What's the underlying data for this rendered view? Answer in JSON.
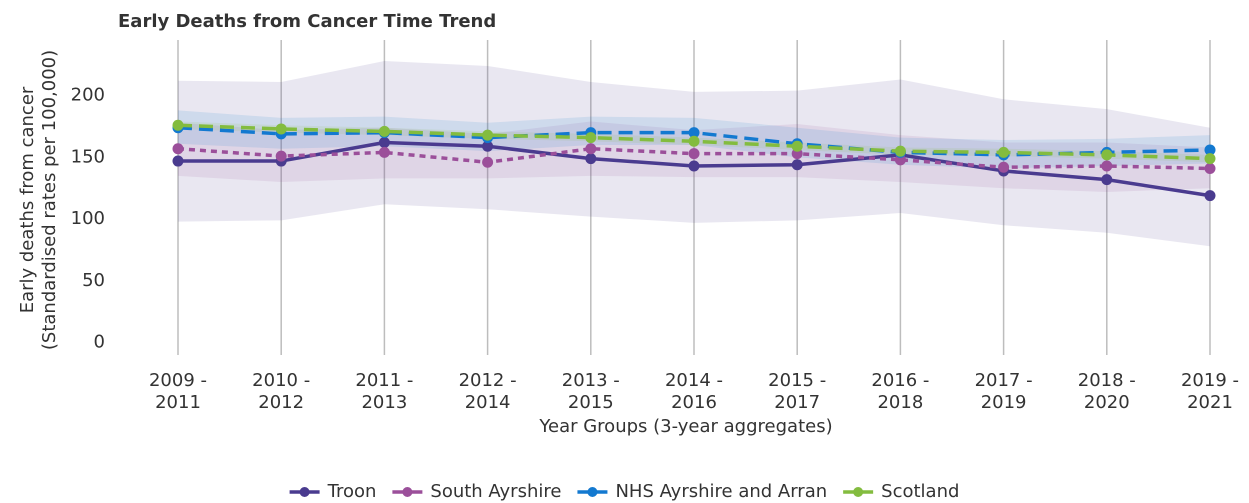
{
  "chart_data": {
    "type": "line",
    "title": "Early Deaths from Cancer Time Trend",
    "y_label": [
      "Early deaths from cancer",
      "(Standardised rates per 100,000)"
    ],
    "x_label": "Year Groups (3-year aggregates)",
    "categories": [
      "2009 - 2011",
      "2010 - 2012",
      "2011 - 2013",
      "2012 - 2014",
      "2013 - 2015",
      "2014 - 2016",
      "2015 - 2017",
      "2016 - 2018",
      "2017 - 2019",
      "2018 - 2020",
      "2019 - 2021"
    ],
    "ylim": [
      -10,
      245
    ],
    "yticks": [
      0,
      50,
      100,
      150,
      200
    ],
    "grid": "x",
    "legend": "bottom",
    "series": [
      {
        "name": "Troon",
        "color": "#4a3b8f",
        "dash": "solid",
        "values": [
          147,
          147,
          162,
          159,
          149,
          143,
          144,
          152,
          139,
          132,
          119
        ],
        "lower": [
          98,
          99,
          112,
          108,
          102,
          97,
          99,
          105,
          95,
          89,
          78
        ],
        "upper": [
          212,
          211,
          228,
          224,
          211,
          203,
          204,
          213,
          197,
          189,
          174
        ]
      },
      {
        "name": "South Ayrshire",
        "color": "#9b4f9a",
        "dash": "dotted",
        "values": [
          157,
          151,
          154,
          146,
          157,
          153,
          153,
          148,
          142,
          143,
          141
        ],
        "lower": [
          135,
          130,
          133,
          133,
          135,
          134,
          134,
          130,
          125,
          122,
          125
        ],
        "upper": [
          178,
          172,
          174,
          169,
          179,
          172,
          177,
          168,
          162,
          162,
          158
        ]
      },
      {
        "name": "NHS Ayrshire and Arran",
        "color": "#1379d0",
        "dash": "dashed",
        "values": [
          174,
          169,
          170,
          166,
          170,
          170,
          161,
          154,
          152,
          154,
          156
        ],
        "lower": [
          161,
          157,
          159,
          155,
          160,
          160,
          150,
          144,
          141,
          143,
          145
        ],
        "upper": [
          188,
          182,
          183,
          178,
          183,
          182,
          174,
          166,
          164,
          165,
          168
        ]
      },
      {
        "name": "Scotland",
        "color": "#83bc3f",
        "dash": "dashed",
        "values": [
          176,
          173,
          171,
          168,
          166,
          163,
          159,
          155,
          154,
          152,
          149
        ],
        "lower": [
          173,
          170,
          168,
          165,
          163,
          160,
          156,
          152,
          151,
          149,
          146
        ],
        "upper": [
          179,
          176,
          174,
          171,
          169,
          166,
          162,
          158,
          157,
          155,
          152
        ]
      }
    ]
  }
}
